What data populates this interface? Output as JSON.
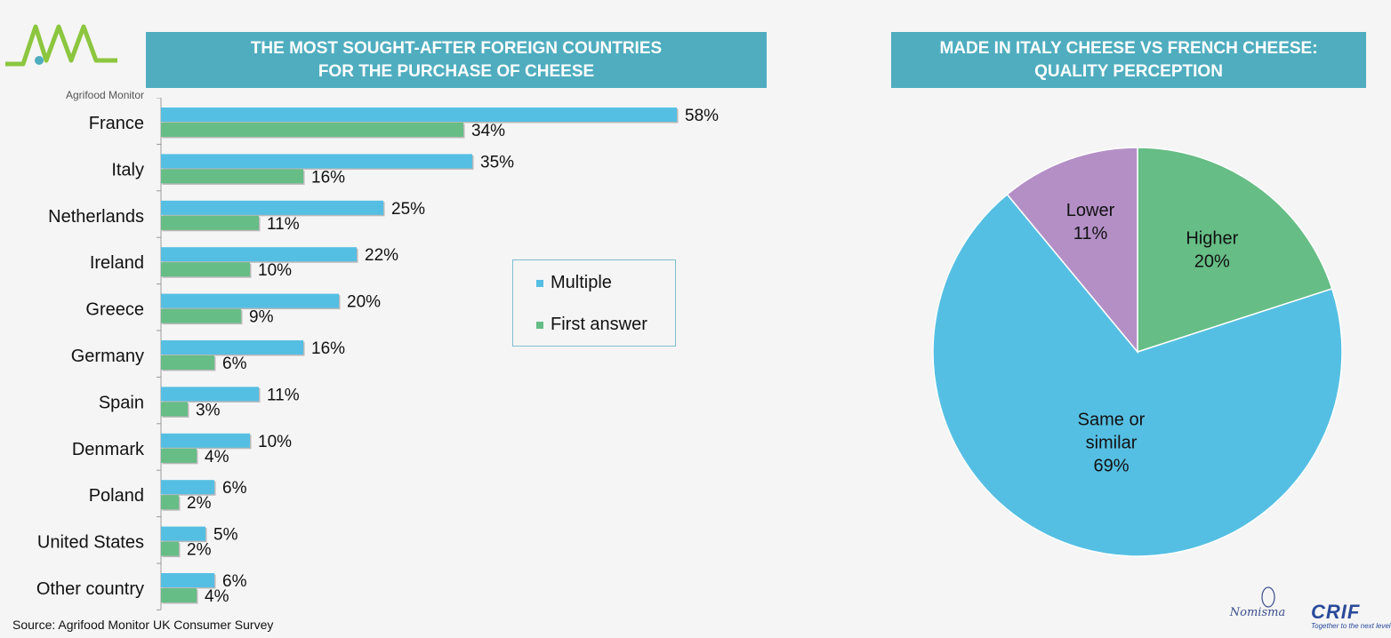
{
  "logo": {
    "brand_text": "Agrifood Monitor"
  },
  "left_banner": {
    "line1": "THE MOST SOUGHT-AFTER FOREIGN COUNTRIES",
    "line2": "FOR THE PURCHASE  OF CHEESE"
  },
  "right_banner": {
    "line1": "MADE IN ITALY CHEESE VS  FRENCH CHEESE:",
    "line2": "QUALITY PERCEPTION"
  },
  "source": "Source:  Agrifood Monitor UK Consumer Survey",
  "partners": {
    "nomisma": "Nomisma",
    "crif": "CRIF",
    "crif_tagline": "Together to the next level"
  },
  "colors": {
    "multiple": "#55bfe3",
    "first": "#66bd85",
    "higher": "#66bd85",
    "same": "#55bfe3",
    "lower": "#b48fc6",
    "banner": "#4fadbf"
  },
  "chart_data": [
    {
      "type": "bar",
      "orientation": "horizontal",
      "categories": [
        "France",
        "Italy",
        "Netherlands",
        "Ireland",
        "Greece",
        "Germany",
        "Spain",
        "Denmark",
        "Poland",
        "United States",
        "Other country"
      ],
      "series": [
        {
          "name": "Multiple",
          "values": [
            58,
            35,
            25,
            22,
            20,
            16,
            11,
            10,
            6,
            5,
            6
          ]
        },
        {
          "name": "First answer",
          "values": [
            34,
            16,
            11,
            10,
            9,
            6,
            3,
            4,
            2,
            2,
            4
          ]
        }
      ],
      "value_suffix": "%",
      "legend": "center-right"
    },
    {
      "type": "pie",
      "labels": [
        "Higher",
        "Same or similar",
        "Lower"
      ],
      "values": [
        20,
        69,
        11
      ],
      "value_suffix": "%"
    }
  ]
}
